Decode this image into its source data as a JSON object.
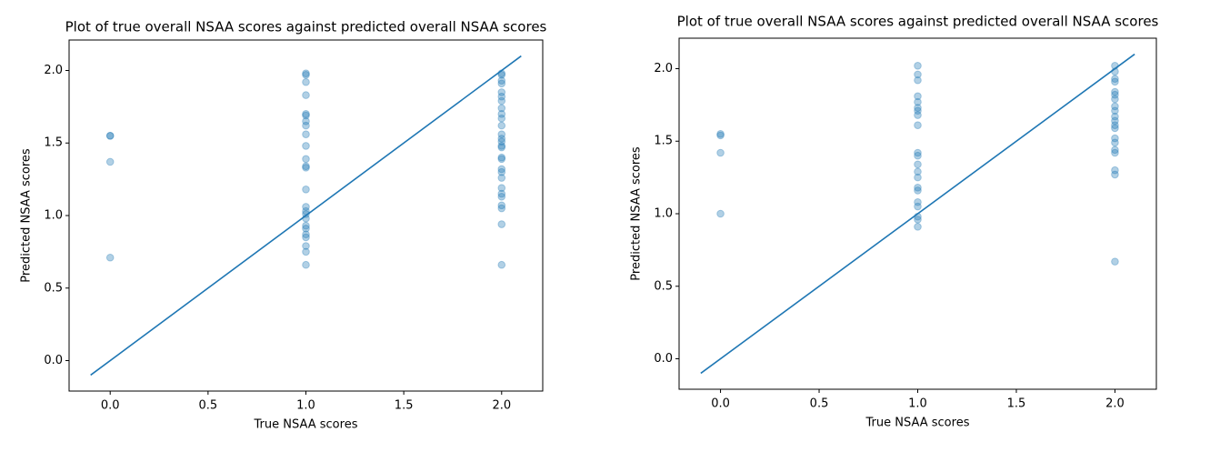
{
  "chart_data": [
    {
      "type": "scatter",
      "title": "Plot of true overall NSAA scores against predicted overall NSAA scores",
      "x_label": "True NSAA scores",
      "y_label": "Predicted NSAA scores",
      "xlim": [
        -0.21,
        2.21
      ],
      "ylim": [
        -0.21,
        2.21
      ],
      "xticks": [
        {
          "value": 0,
          "label": "0.0"
        },
        {
          "value": 0.5,
          "label": "0.5"
        },
        {
          "value": 1,
          "label": "1.0"
        },
        {
          "value": 1.5,
          "label": "1.5"
        },
        {
          "value": 2,
          "label": "2.0"
        }
      ],
      "yticks": [
        {
          "value": 0,
          "label": "0.0"
        },
        {
          "value": 0.5,
          "label": "0.5"
        },
        {
          "value": 1,
          "label": "1.0"
        },
        {
          "value": 1.5,
          "label": "1.5"
        },
        {
          "value": 2,
          "label": "2.0"
        }
      ],
      "series": [
        {
          "type": "scatter",
          "color": "#1f77b4",
          "alpha": 0.35,
          "x": [
            0,
            0,
            0,
            0,
            1,
            1,
            1,
            1,
            1,
            1,
            1,
            1,
            1,
            1,
            1,
            1,
            1,
            1,
            1,
            1,
            1,
            1,
            1,
            1,
            1,
            1,
            1,
            1,
            1,
            2,
            2,
            2,
            2,
            2,
            2,
            2,
            2,
            2,
            2,
            2,
            2,
            2,
            2,
            2,
            2,
            2,
            2,
            2,
            2,
            2,
            2,
            2,
            2,
            2,
            2,
            2,
            2
          ],
          "y": [
            1.55,
            1.55,
            1.37,
            0.71,
            1.98,
            1.97,
            1.92,
            1.83,
            1.7,
            1.69,
            1.65,
            1.62,
            1.56,
            1.48,
            1.39,
            1.33,
            1.34,
            1.18,
            1.06,
            1.03,
            1.01,
            0.98,
            0.93,
            0.91,
            0.87,
            0.85,
            0.79,
            0.75,
            0.66,
            1.98,
            1.97,
            1.93,
            1.91,
            1.85,
            1.82,
            1.79,
            1.74,
            1.7,
            1.67,
            1.62,
            1.56,
            1.53,
            1.51,
            1.48,
            1.47,
            1.4,
            1.39,
            1.32,
            1.3,
            1.26,
            1.19,
            1.15,
            1.13,
            1.07,
            1.05,
            0.94,
            0.66
          ]
        },
        {
          "type": "line",
          "color": "#1f77b4",
          "x": [
            -0.1,
            2.1
          ],
          "y": [
            -0.1,
            2.1
          ]
        }
      ]
    },
    {
      "type": "scatter",
      "title": "Plot of true overall NSAA scores against predicted overall NSAA scores",
      "x_label": "True NSAA scores",
      "y_label": "Predicted NSAA scores",
      "xlim": [
        -0.21,
        2.21
      ],
      "ylim": [
        -0.21,
        2.21
      ],
      "xticks": [
        {
          "value": 0,
          "label": "0.0"
        },
        {
          "value": 0.5,
          "label": "0.5"
        },
        {
          "value": 1,
          "label": "1.0"
        },
        {
          "value": 1.5,
          "label": "1.5"
        },
        {
          "value": 2,
          "label": "2.0"
        }
      ],
      "yticks": [
        {
          "value": 0,
          "label": "0.0"
        },
        {
          "value": 0.5,
          "label": "0.5"
        },
        {
          "value": 1,
          "label": "1.0"
        },
        {
          "value": 1.5,
          "label": "1.5"
        },
        {
          "value": 2,
          "label": "2.0"
        }
      ],
      "series": [
        {
          "type": "scatter",
          "color": "#1f77b4",
          "alpha": 0.35,
          "x": [
            0,
            0,
            0,
            0,
            1,
            1,
            1,
            1,
            1,
            1,
            1,
            1,
            1,
            1,
            1,
            1,
            1,
            1,
            1,
            1,
            1,
            1,
            1,
            1,
            1,
            2,
            2,
            2,
            2,
            2,
            2,
            2,
            2,
            2,
            2,
            2,
            2,
            2,
            2,
            2,
            2,
            2,
            2,
            2,
            2
          ],
          "y": [
            1.55,
            1.54,
            1.42,
            1.0,
            2.02,
            1.96,
            1.92,
            1.81,
            1.77,
            1.73,
            1.71,
            1.68,
            1.61,
            1.42,
            1.4,
            1.34,
            1.29,
            1.25,
            1.18,
            1.16,
            1.08,
            1.05,
            0.98,
            0.96,
            0.91,
            2.02,
            1.98,
            1.93,
            1.91,
            1.84,
            1.82,
            1.79,
            1.74,
            1.71,
            1.67,
            1.64,
            1.61,
            1.59,
            1.52,
            1.49,
            1.44,
            1.42,
            1.3,
            1.27,
            0.67
          ]
        },
        {
          "type": "line",
          "color": "#1f77b4",
          "x": [
            -0.1,
            2.1
          ],
          "y": [
            -0.1,
            2.1
          ]
        }
      ]
    }
  ]
}
